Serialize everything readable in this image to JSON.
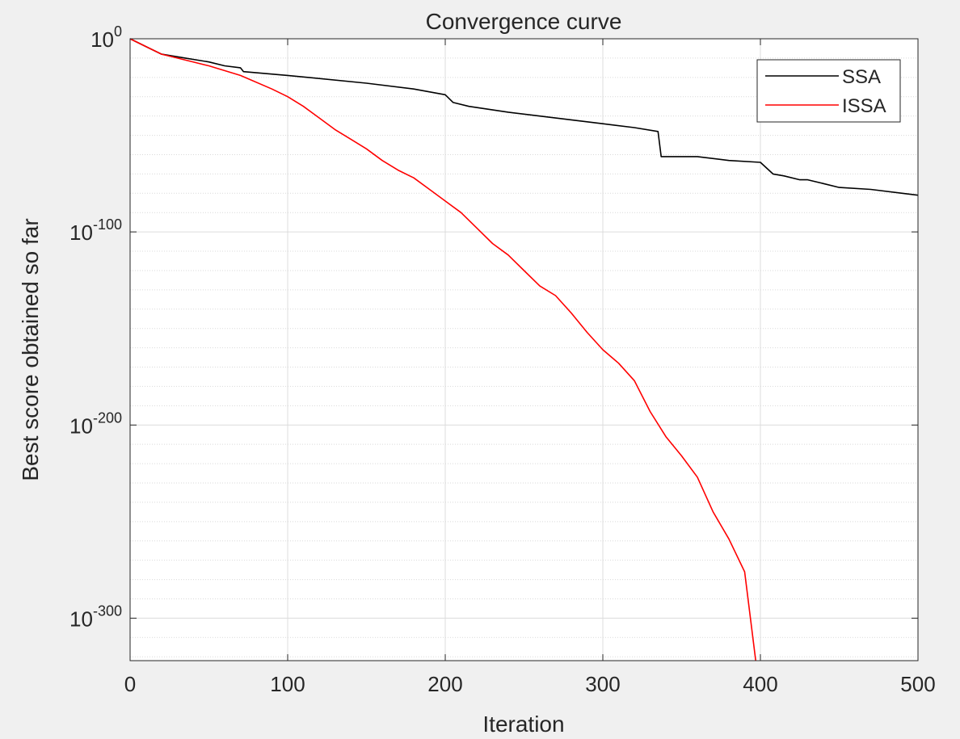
{
  "chart_data": {
    "type": "line",
    "title": "Convergence curve",
    "xlabel": "Iteration",
    "ylabel": "Best score obtained so far",
    "xlim": [
      0,
      500
    ],
    "ylim_log10": [
      -322,
      0
    ],
    "y_scale": "log",
    "grid": true,
    "legend_position": "top-right",
    "x_ticks": [
      {
        "value": 0,
        "label": "0"
      },
      {
        "value": 100,
        "label": "100"
      },
      {
        "value": 200,
        "label": "200"
      },
      {
        "value": 300,
        "label": "300"
      },
      {
        "value": 400,
        "label": "400"
      },
      {
        "value": 500,
        "label": "500"
      }
    ],
    "y_ticks": [
      {
        "log10": 0,
        "base": "10",
        "exp": "0"
      },
      {
        "log10": -100,
        "base": "10",
        "exp": "-100"
      },
      {
        "log10": -200,
        "base": "10",
        "exp": "-200"
      },
      {
        "log10": -300,
        "base": "10",
        "exp": "-300"
      }
    ],
    "series": [
      {
        "name": "SSA",
        "color": "#000000",
        "x": [
          0,
          10,
          20,
          35,
          50,
          60,
          70,
          72,
          100,
          150,
          180,
          200,
          205,
          215,
          240,
          260,
          280,
          300,
          320,
          335,
          337,
          340,
          360,
          380,
          400,
          408,
          415,
          425,
          430,
          440,
          450,
          470,
          490,
          500
        ],
        "log10y": [
          0,
          -4,
          -8,
          -10,
          -12,
          -14,
          -15,
          -17,
          -19,
          -23,
          -26,
          -29,
          -33,
          -35,
          -38,
          -40,
          -42,
          -44,
          -46,
          -48,
          -61,
          -61,
          -61,
          -63,
          -64,
          -70,
          -71,
          -73,
          -73,
          -75,
          -77,
          -78,
          -80,
          -81
        ]
      },
      {
        "name": "ISSA",
        "color": "#ff0000",
        "x": [
          0,
          10,
          20,
          30,
          50,
          70,
          90,
          100,
          110,
          120,
          130,
          140,
          150,
          160,
          170,
          180,
          190,
          200,
          210,
          220,
          230,
          240,
          250,
          260,
          270,
          280,
          290,
          300,
          310,
          320,
          330,
          340,
          350,
          360,
          370,
          380,
          390,
          397
        ],
        "log10y": [
          0,
          -4,
          -8,
          -10,
          -14,
          -19,
          -26,
          -30,
          -35,
          -41,
          -47,
          -52,
          -57,
          -63,
          -68,
          -72,
          -78,
          -84,
          -90,
          -98,
          -106,
          -112,
          -120,
          -128,
          -133,
          -142,
          -152,
          -161,
          -168,
          -177,
          -193,
          -206,
          -216,
          -227,
          -245,
          -259,
          -276,
          -322
        ]
      }
    ]
  }
}
